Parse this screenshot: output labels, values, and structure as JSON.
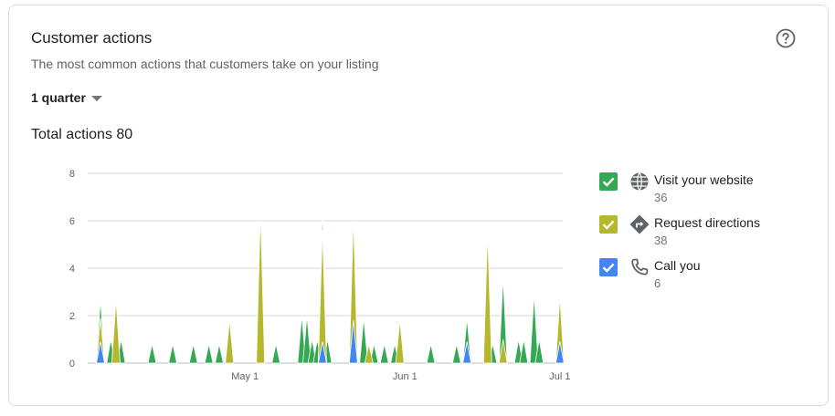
{
  "header": {
    "title": "Customer actions",
    "subtitle": "The most common actions that customers take on your listing",
    "help_icon": "help-circle-icon"
  },
  "period": {
    "selected": "1 quarter"
  },
  "total": {
    "label": "Total actions 80"
  },
  "legend": [
    {
      "name": "Visit your website",
      "value": "36",
      "color": "#34a853",
      "icon": "globe-icon"
    },
    {
      "name": "Request directions",
      "value": "38",
      "color": "#b5b72c",
      "icon": "directions-icon"
    },
    {
      "name": "Call you",
      "value": "6",
      "color": "#4285f4",
      "icon": "phone-icon"
    }
  ],
  "chart_data": {
    "type": "area",
    "title": "Total actions 80",
    "x_range": [
      "Apr 3",
      "Jul 2"
    ],
    "x_ticks": [
      {
        "label": "May 1",
        "date": "May 1"
      },
      {
        "label": "Jun 1",
        "date": "Jun 1"
      },
      {
        "label": "Jul 1",
        "date": "Jul 1"
      }
    ],
    "ylim": [
      0,
      8
    ],
    "y_ticks": [
      "0",
      "2",
      "4",
      "6",
      "8"
    ],
    "grid": true,
    "legend_position": "right",
    "series": [
      {
        "name": "Visit your website",
        "color": "#34a853",
        "points": [
          [
            "Apr 3",
            2.7
          ],
          [
            "Apr 5",
            1
          ],
          [
            "Apr 6",
            2.8
          ],
          [
            "Apr 7",
            1
          ],
          [
            "Apr 13",
            0.8
          ],
          [
            "Apr 17",
            0.8
          ],
          [
            "Apr 21",
            0.8
          ],
          [
            "Apr 24",
            0.8
          ],
          [
            "Apr 26",
            0.8
          ],
          [
            "May 7",
            0.8
          ],
          [
            "May 12",
            2
          ],
          [
            "May 13",
            2
          ],
          [
            "May 14",
            1
          ],
          [
            "May 15",
            1
          ],
          [
            "May 16",
            6.5
          ],
          [
            "May 17",
            1
          ],
          [
            "May 22",
            0.8
          ],
          [
            "May 24",
            1.9
          ],
          [
            "May 26",
            0.8
          ],
          [
            "May 28",
            0.8
          ],
          [
            "May 30",
            0.8
          ],
          [
            "Jun 6",
            0.8
          ],
          [
            "Jun 11",
            0.8
          ],
          [
            "Jun 13",
            1.9
          ],
          [
            "Jun 18",
            0.8
          ],
          [
            "Jun 20",
            3.6
          ],
          [
            "Jun 23",
            1
          ],
          [
            "Jun 24",
            1
          ],
          [
            "Jun 26",
            2.9
          ],
          [
            "Jun 27",
            1
          ]
        ]
      },
      {
        "name": "Request directions",
        "color": "#b5b72c",
        "points": [
          [
            "Apr 3",
            1.9
          ],
          [
            "Apr 6",
            2.7
          ],
          [
            "Apr 28",
            1.8
          ],
          [
            "May 4",
            6.4
          ],
          [
            "May 16",
            5.6
          ],
          [
            "May 22",
            6.2
          ],
          [
            "May 25",
            0.8
          ],
          [
            "May 31",
            1.8
          ],
          [
            "Jun 17",
            5.5
          ],
          [
            "Jun 20",
            1
          ],
          [
            "Jul 1",
            2.8
          ]
        ]
      },
      {
        "name": "Call you",
        "color": "#4285f4",
        "points": [
          [
            "Apr 3",
            0.9
          ],
          [
            "May 16",
            0.9
          ],
          [
            "May 22",
            1.8
          ],
          [
            "Jun 13",
            0.9
          ],
          [
            "Jul 1",
            0.9
          ]
        ]
      }
    ]
  }
}
